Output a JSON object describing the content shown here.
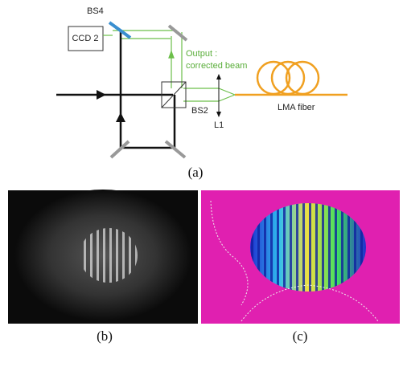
{
  "diagram": {
    "labels": {
      "bs4": "BS4",
      "ccd": "CCD 2",
      "output": "Output :",
      "corrected": "corrected beam",
      "fiber": "LMA fiber",
      "bs2": "BS2",
      "lens": "L1"
    },
    "captions": [
      "(a)",
      "(b)",
      "(c)"
    ]
  }
}
